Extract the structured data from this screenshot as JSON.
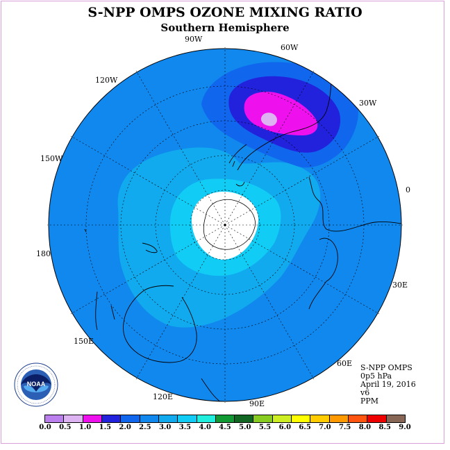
{
  "title": "S-NPP OMPS OZONE MIXING RATIO",
  "subtitle": "Southern Hemisphere",
  "longitudes": {
    "w90": "90W",
    "w60": "60W",
    "w30": "30W",
    "w120": "120W",
    "w150": "150W",
    "e0": "0",
    "deg180": "180",
    "e30": "30E",
    "e60": "60E",
    "e90": "90E",
    "e120": "120E",
    "e150": "150E"
  },
  "info": {
    "instrument": "S-NPP OMPS",
    "pressure": "0p5 hPa",
    "date": "April 19, 2016",
    "version": "v6",
    "units": "PPM"
  },
  "logo": {
    "text": "NOAA",
    "ring_text": "NATIONAL OCEANIC AND ATMOSPHERIC ADMINISTRATION · U.S. DEPARTMENT OF COMMERCE"
  },
  "colorbar": {
    "ticks": [
      "0.0",
      "0.5",
      "1.0",
      "1.5",
      "2.0",
      "2.5",
      "3.0",
      "3.5",
      "4.0",
      "4.5",
      "5.0",
      "5.5",
      "6.0",
      "6.5",
      "7.0",
      "7.5",
      "8.0",
      "8.5",
      "9.0"
    ],
    "colors": [
      "#bb80ee",
      "#ddb3f2",
      "#ee11ee",
      "#2222dd",
      "#1166ee",
      "#1188ee",
      "#11aaee",
      "#11ccf5",
      "#22eedd",
      "#119933",
      "#116622",
      "#88cc22",
      "#ccee22",
      "#ffff00",
      "#ffcc00",
      "#ff9900",
      "#ff5511",
      "#ee0000",
      "#886655"
    ]
  }
}
